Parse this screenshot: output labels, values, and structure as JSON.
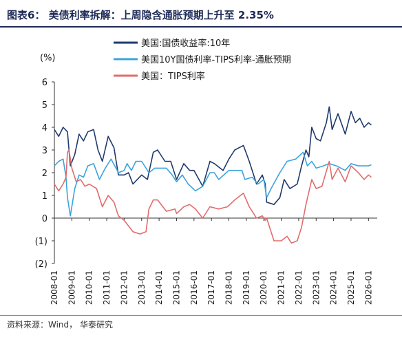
{
  "figure": {
    "title": "图表6： 美债利率拆解：上周隐含通胀预期上升至 2.35%",
    "source": "资料来源：Wind， 华泰研究"
  },
  "chart_data": {
    "type": "line",
    "title": "",
    "xlabel": "",
    "ylabel": "(%)",
    "ylim": [
      -2,
      6
    ],
    "xlim": [
      "2008-01",
      "2026-07"
    ],
    "yticks": [
      {
        "value": -2,
        "label": "(2)"
      },
      {
        "value": -1,
        "label": "(1)"
      },
      {
        "value": 0,
        "label": "0"
      },
      {
        "value": 1,
        "label": "1"
      },
      {
        "value": 2,
        "label": "2"
      },
      {
        "value": 3,
        "label": "3"
      },
      {
        "value": 4,
        "label": "4"
      },
      {
        "value": 5,
        "label": "5"
      },
      {
        "value": 6,
        "label": "6"
      }
    ],
    "xticks": [
      "2008-01",
      "2009-01",
      "2010-01",
      "2011-01",
      "2012-01",
      "2013-01",
      "2014-01",
      "2015-01",
      "2016-01",
      "2017-01",
      "2018-01",
      "2019-01",
      "2020-01",
      "2021-01",
      "2022-01",
      "2023-01",
      "2024-01",
      "2025-01",
      "2026-01"
    ],
    "grid": false,
    "legend": "top-right",
    "series": [
      {
        "name": "美国:国债收益率:10年",
        "color": "#1f3a6d",
        "points": [
          [
            "2008-01",
            3.9
          ],
          [
            "2008-04",
            3.6
          ],
          [
            "2008-07",
            4.0
          ],
          [
            "2008-10",
            3.8
          ],
          [
            "2008-12",
            2.3
          ],
          [
            "2009-03",
            2.8
          ],
          [
            "2009-06",
            3.7
          ],
          [
            "2009-09",
            3.4
          ],
          [
            "2009-12",
            3.8
          ],
          [
            "2010-04",
            3.9
          ],
          [
            "2010-07",
            3.0
          ],
          [
            "2010-10",
            2.5
          ],
          [
            "2011-02",
            3.6
          ],
          [
            "2011-06",
            3.1
          ],
          [
            "2011-09",
            1.9
          ],
          [
            "2012-01",
            1.9
          ],
          [
            "2012-04",
            2.0
          ],
          [
            "2012-07",
            1.5
          ],
          [
            "2012-10",
            1.7
          ],
          [
            "2013-01",
            1.9
          ],
          [
            "2013-05",
            1.7
          ],
          [
            "2013-09",
            2.9
          ],
          [
            "2013-12",
            3.0
          ],
          [
            "2014-05",
            2.5
          ],
          [
            "2014-09",
            2.5
          ],
          [
            "2015-01",
            1.7
          ],
          [
            "2015-06",
            2.4
          ],
          [
            "2015-10",
            2.1
          ],
          [
            "2016-01",
            2.1
          ],
          [
            "2016-07",
            1.4
          ],
          [
            "2016-12",
            2.5
          ],
          [
            "2017-03",
            2.4
          ],
          [
            "2017-09",
            2.1
          ],
          [
            "2018-01",
            2.6
          ],
          [
            "2018-05",
            3.0
          ],
          [
            "2018-11",
            3.2
          ],
          [
            "2019-03",
            2.5
          ],
          [
            "2019-08",
            1.5
          ],
          [
            "2019-12",
            1.9
          ],
          [
            "2020-02",
            1.5
          ],
          [
            "2020-03",
            0.7
          ],
          [
            "2020-08",
            0.6
          ],
          [
            "2020-12",
            0.9
          ],
          [
            "2021-03",
            1.7
          ],
          [
            "2021-07",
            1.3
          ],
          [
            "2021-12",
            1.5
          ],
          [
            "2022-03",
            2.3
          ],
          [
            "2022-06",
            3.0
          ],
          [
            "2022-08",
            2.7
          ],
          [
            "2022-10",
            4.0
          ],
          [
            "2023-01",
            3.5
          ],
          [
            "2023-04",
            3.4
          ],
          [
            "2023-08",
            4.2
          ],
          [
            "2023-10",
            4.9
          ],
          [
            "2023-12",
            3.9
          ],
          [
            "2024-04",
            4.6
          ],
          [
            "2024-09",
            3.7
          ],
          [
            "2025-01",
            4.7
          ],
          [
            "2025-04",
            4.2
          ],
          [
            "2025-07",
            4.4
          ],
          [
            "2025-10",
            4.0
          ],
          [
            "2026-01",
            4.2
          ],
          [
            "2026-03",
            4.1
          ]
        ]
      },
      {
        "name": "美国10Y国债利率-TIPS利率-通胀预期",
        "color": "#3ba3dc",
        "points": [
          [
            "2008-01",
            2.3
          ],
          [
            "2008-04",
            2.5
          ],
          [
            "2008-07",
            2.6
          ],
          [
            "2008-09",
            1.8
          ],
          [
            "2008-10",
            0.9
          ],
          [
            "2008-12",
            0.1
          ],
          [
            "2009-03",
            1.3
          ],
          [
            "2009-06",
            1.9
          ],
          [
            "2009-09",
            1.8
          ],
          [
            "2009-12",
            2.3
          ],
          [
            "2010-04",
            2.4
          ],
          [
            "2010-08",
            1.7
          ],
          [
            "2010-12",
            2.2
          ],
          [
            "2011-04",
            2.6
          ],
          [
            "2011-09",
            2.0
          ],
          [
            "2012-01",
            2.1
          ],
          [
            "2012-03",
            2.4
          ],
          [
            "2012-06",
            2.1
          ],
          [
            "2012-09",
            2.5
          ],
          [
            "2013-01",
            2.5
          ],
          [
            "2013-06",
            2.0
          ],
          [
            "2013-10",
            2.2
          ],
          [
            "2014-01",
            2.2
          ],
          [
            "2014-06",
            2.2
          ],
          [
            "2014-10",
            1.9
          ],
          [
            "2015-01",
            1.6
          ],
          [
            "2015-05",
            1.9
          ],
          [
            "2015-09",
            1.5
          ],
          [
            "2016-02",
            1.2
          ],
          [
            "2016-07",
            1.4
          ],
          [
            "2016-12",
            2.0
          ],
          [
            "2017-03",
            2.0
          ],
          [
            "2017-06",
            1.7
          ],
          [
            "2018-01",
            2.1
          ],
          [
            "2018-05",
            2.1
          ],
          [
            "2018-10",
            2.1
          ],
          [
            "2018-12",
            1.7
          ],
          [
            "2019-05",
            1.8
          ],
          [
            "2019-09",
            1.5
          ],
          [
            "2020-01",
            1.7
          ],
          [
            "2020-03",
            0.9
          ],
          [
            "2020-06",
            1.3
          ],
          [
            "2020-12",
            2.0
          ],
          [
            "2021-05",
            2.5
          ],
          [
            "2021-11",
            2.6
          ],
          [
            "2022-04",
            2.9
          ],
          [
            "2022-07",
            2.3
          ],
          [
            "2022-10",
            2.5
          ],
          [
            "2023-01",
            2.2
          ],
          [
            "2023-06",
            2.3
          ],
          [
            "2023-10",
            2.4
          ],
          [
            "2024-03",
            2.3
          ],
          [
            "2024-09",
            2.1
          ],
          [
            "2025-01",
            2.4
          ],
          [
            "2025-06",
            2.3
          ],
          [
            "2025-11",
            2.3
          ],
          [
            "2026-01",
            2.3
          ],
          [
            "2026-03",
            2.35
          ]
        ]
      },
      {
        "name": "美国：TIPS利率",
        "color": "#e36b6b",
        "points": [
          [
            "2008-01",
            1.5
          ],
          [
            "2008-04",
            1.2
          ],
          [
            "2008-07",
            1.5
          ],
          [
            "2008-09",
            1.8
          ],
          [
            "2008-10",
            2.9
          ],
          [
            "2008-11",
            3.0
          ],
          [
            "2009-01",
            2.2
          ],
          [
            "2009-04",
            1.6
          ],
          [
            "2009-07",
            1.7
          ],
          [
            "2009-10",
            1.4
          ],
          [
            "2010-01",
            1.5
          ],
          [
            "2010-06",
            1.3
          ],
          [
            "2010-10",
            0.5
          ],
          [
            "2011-02",
            1.0
          ],
          [
            "2011-06",
            0.7
          ],
          [
            "2011-09",
            0.1
          ],
          [
            "2012-01",
            -0.1
          ],
          [
            "2012-07",
            -0.6
          ],
          [
            "2012-12",
            -0.7
          ],
          [
            "2013-04",
            -0.6
          ],
          [
            "2013-06",
            0.4
          ],
          [
            "2013-09",
            0.8
          ],
          [
            "2013-12",
            0.8
          ],
          [
            "2014-06",
            0.3
          ],
          [
            "2014-12",
            0.4
          ],
          [
            "2015-01",
            0.2
          ],
          [
            "2015-06",
            0.5
          ],
          [
            "2015-10",
            0.6
          ],
          [
            "2016-02",
            0.4
          ],
          [
            "2016-07",
            0.0
          ],
          [
            "2016-12",
            0.5
          ],
          [
            "2017-06",
            0.4
          ],
          [
            "2017-12",
            0.5
          ],
          [
            "2018-05",
            0.8
          ],
          [
            "2018-11",
            1.1
          ],
          [
            "2019-03",
            0.5
          ],
          [
            "2019-08",
            0.0
          ],
          [
            "2019-12",
            0.1
          ],
          [
            "2020-02",
            -0.1
          ],
          [
            "2020-03",
            0.0
          ],
          [
            "2020-08",
            -1.0
          ],
          [
            "2021-01",
            -1.0
          ],
          [
            "2021-05",
            -0.8
          ],
          [
            "2021-08",
            -1.1
          ],
          [
            "2021-12",
            -1.0
          ],
          [
            "2022-03",
            -0.4
          ],
          [
            "2022-06",
            0.6
          ],
          [
            "2022-10",
            1.7
          ],
          [
            "2023-01",
            1.3
          ],
          [
            "2023-05",
            1.4
          ],
          [
            "2023-10",
            2.5
          ],
          [
            "2023-12",
            1.7
          ],
          [
            "2024-04",
            2.2
          ],
          [
            "2024-09",
            1.6
          ],
          [
            "2025-01",
            2.3
          ],
          [
            "2025-06",
            2.0
          ],
          [
            "2025-10",
            1.7
          ],
          [
            "2026-01",
            1.9
          ],
          [
            "2026-03",
            1.8
          ]
        ]
      }
    ]
  }
}
